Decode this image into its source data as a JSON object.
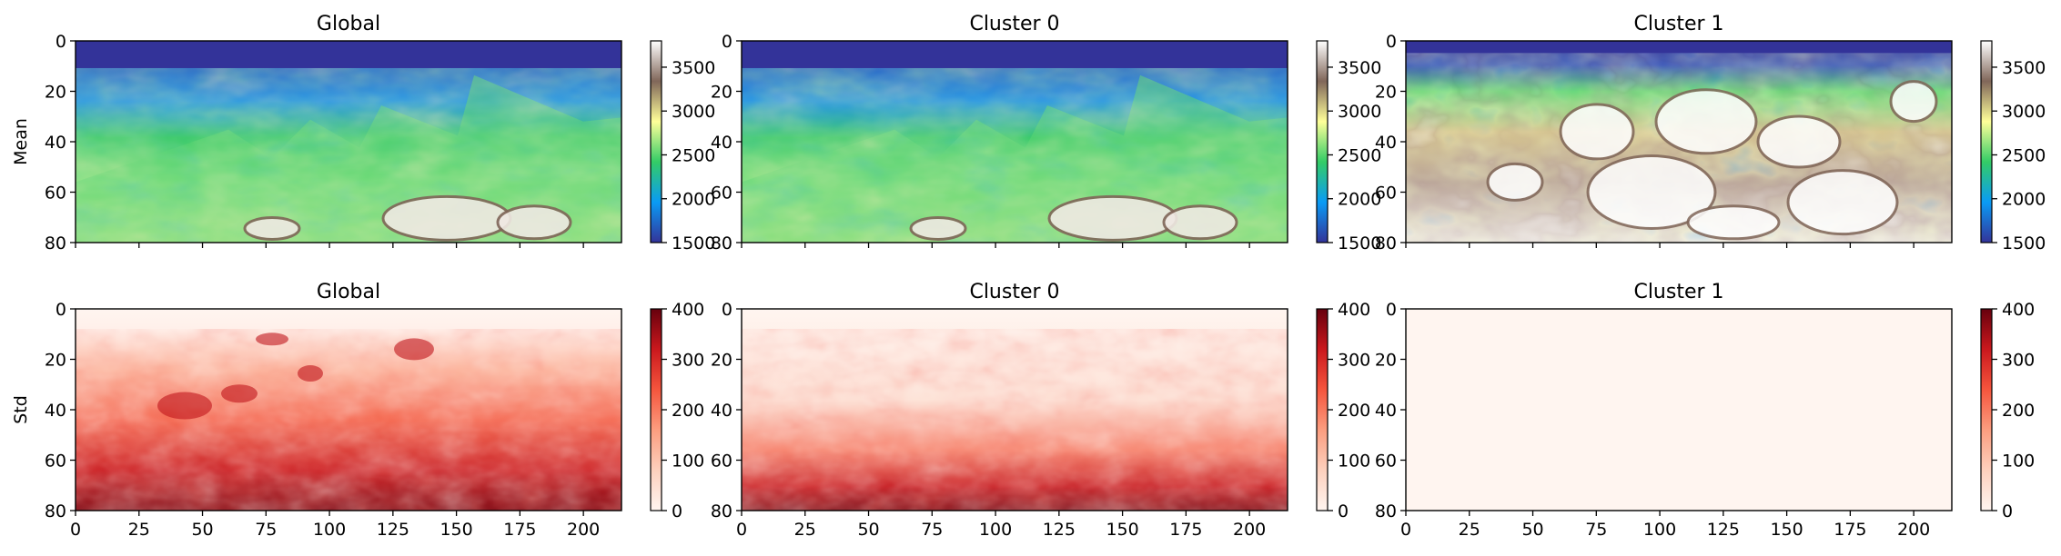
{
  "figure": {
    "row_labels": [
      "Mean",
      "Std"
    ]
  },
  "colormaps": {
    "terrain": [
      "#333399",
      "#0a9bf5",
      "#33cc66",
      "#ffff99",
      "#806659",
      "#ffffff"
    ],
    "reds": [
      "#fff5f0",
      "#fdd0bd",
      "#fc9d7f",
      "#f5553d",
      "#ca181d",
      "#67000d"
    ]
  },
  "chart_data": [
    {
      "type": "heatmap",
      "title": "Global",
      "ylabel": "Mean",
      "colormap": "terrain",
      "xlim": [
        0,
        215
      ],
      "ylim": [
        80,
        0
      ],
      "xticks": [
        0,
        25,
        50,
        75,
        100,
        125,
        150,
        175,
        200
      ],
      "yticks": [
        0,
        20,
        40,
        60,
        80
      ],
      "show_xticklabels": false,
      "colorbar": {
        "range": [
          1500,
          3800
        ],
        "ticks": [
          1500,
          2000,
          2500,
          3000,
          3500
        ]
      }
    },
    {
      "type": "heatmap",
      "title": "Cluster 0",
      "ylabel": "",
      "colormap": "terrain",
      "xlim": [
        0,
        215
      ],
      "ylim": [
        80,
        0
      ],
      "xticks": [
        0,
        25,
        50,
        75,
        100,
        125,
        150,
        175,
        200
      ],
      "yticks": [
        0,
        20,
        40,
        60,
        80
      ],
      "show_xticklabels": false,
      "colorbar": {
        "range": [
          1500,
          3800
        ],
        "ticks": [
          1500,
          2000,
          2500,
          3000,
          3500
        ]
      }
    },
    {
      "type": "heatmap",
      "title": "Cluster 1",
      "ylabel": "",
      "colormap": "terrain",
      "xlim": [
        0,
        215
      ],
      "ylim": [
        80,
        0
      ],
      "xticks": [
        0,
        25,
        50,
        75,
        100,
        125,
        150,
        175,
        200
      ],
      "yticks": [
        0,
        20,
        40,
        60,
        80
      ],
      "show_xticklabels": false,
      "colorbar": {
        "range": [
          1500,
          3800
        ],
        "ticks": [
          1500,
          2000,
          2500,
          3000,
          3500
        ]
      }
    },
    {
      "type": "heatmap",
      "title": "Global",
      "ylabel": "Std",
      "colormap": "reds",
      "xlim": [
        0,
        215
      ],
      "ylim": [
        80,
        0
      ],
      "xticks": [
        0,
        25,
        50,
        75,
        100,
        125,
        150,
        175,
        200
      ],
      "yticks": [
        0,
        20,
        40,
        60,
        80
      ],
      "show_xticklabels": true,
      "colorbar": {
        "range": [
          0,
          400
        ],
        "ticks": [
          0,
          100,
          200,
          300,
          400
        ]
      }
    },
    {
      "type": "heatmap",
      "title": "Cluster 0",
      "ylabel": "",
      "colormap": "reds",
      "xlim": [
        0,
        215
      ],
      "ylim": [
        80,
        0
      ],
      "xticks": [
        0,
        25,
        50,
        75,
        100,
        125,
        150,
        175,
        200
      ],
      "yticks": [
        0,
        20,
        40,
        60,
        80
      ],
      "show_xticklabels": true,
      "colorbar": {
        "range": [
          0,
          400
        ],
        "ticks": [
          0,
          100,
          200,
          300,
          400
        ]
      }
    },
    {
      "type": "heatmap",
      "title": "Cluster 1",
      "ylabel": "",
      "colormap": "reds",
      "xlim": [
        0,
        215
      ],
      "ylim": [
        80,
        0
      ],
      "xticks": [
        0,
        25,
        50,
        75,
        100,
        125,
        150,
        175,
        200
      ],
      "yticks": [
        0,
        20,
        40,
        60,
        80
      ],
      "show_xticklabels": true,
      "colorbar": {
        "range": [
          0,
          400
        ],
        "ticks": [
          0,
          100,
          200,
          300,
          400
        ]
      }
    }
  ]
}
